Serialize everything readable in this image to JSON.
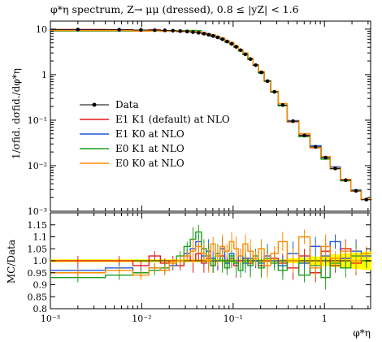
{
  "chart_data": {
    "type": "line",
    "title": "φ*η spectrum, Z→ μμ (dressed), 0.8 ≤ |yZ| < 1.6",
    "xlabel": "φ*η",
    "ylabel": "1/σfid. dσfid./dφ*η",
    "xscale": "log",
    "yscale": "log",
    "xlim": [
      0.001,
      3.2
    ],
    "ylim": [
      0.001,
      15
    ],
    "grid": false,
    "legend_position": "center-left",
    "x_ticks": [
      "10⁻³",
      "10⁻²",
      "10⁻¹",
      "1"
    ],
    "y_ticks": [
      "10⁻³",
      "10⁻²",
      "10⁻¹",
      "1",
      "10"
    ],
    "bin_edges": [
      0.001,
      0.004,
      0.008,
      0.012,
      0.016,
      0.02,
      0.024,
      0.029,
      0.034,
      0.039,
      0.045,
      0.051,
      0.057,
      0.064,
      0.072,
      0.081,
      0.091,
      0.102,
      0.114,
      0.128,
      0.145,
      0.165,
      0.189,
      0.219,
      0.258,
      0.312,
      0.391,
      0.524,
      0.695,
      0.918,
      1.153,
      1.496,
      1.947,
      2.522,
      3.277
    ],
    "data": {
      "name": "Data",
      "color": "#000000",
      "values": [
        9.8,
        9.7,
        9.6,
        9.5,
        9.4,
        9.25,
        9.05,
        8.85,
        8.6,
        8.3,
        7.95,
        7.55,
        7.1,
        6.6,
        6.0,
        5.35,
        4.75,
        4.1,
        3.45,
        2.8,
        2.2,
        1.62,
        1.12,
        0.72,
        0.42,
        0.215,
        0.095,
        0.046,
        0.026,
        0.015,
        0.0087,
        0.0048,
        0.0028,
        0.0018
      ]
    },
    "series": [
      {
        "name": "E1 K1 (default) at NLO",
        "color": "#e41a1c"
      },
      {
        "name": "E1 K0 at NLO",
        "color": "#1f57e0"
      },
      {
        "name": "E0 K1 at NLO",
        "color": "#1e9e1e"
      },
      {
        "name": "E0 K0 at NLO",
        "color": "#ff8c00"
      }
    ],
    "ratio_panel": {
      "ylabel": "MC/Data",
      "ylim": [
        0.8,
        1.2
      ],
      "y_ticks": [
        "0.8",
        "0.85",
        "0.9",
        "0.95",
        "1.0",
        "1.05",
        "1.1",
        "1.15"
      ],
      "band_color": "#ffff00",
      "ratios": [
        [
          1.0,
          1.0,
          0.98,
          1.02,
          0.99,
          1.0,
          0.98,
          1.02,
          1.0,
          1.03,
          0.99,
          1.01,
          0.98,
          1.0,
          1.02,
          0.99,
          1.01,
          0.98,
          1.0,
          1.01,
          0.99,
          1.0,
          0.98,
          1.0,
          1.01,
          0.99,
          0.97,
          1.02,
          0.95,
          1.04,
          0.98,
          1.05,
          0.99,
          1.0
        ],
        [
          0.96,
          0.97,
          0.95,
          0.97,
          0.96,
          0.98,
          1.0,
          1.03,
          1.05,
          1.08,
          1.02,
          1.04,
          1.01,
          1.0,
          1.05,
          0.99,
          1.03,
          1.0,
          1.02,
          0.99,
          1.01,
          1.0,
          0.99,
          1.02,
          1.0,
          0.98,
          1.03,
          0.99,
          1.06,
          1.02,
          1.08,
          1.01,
          1.04,
          1.02
        ],
        [
          0.93,
          0.94,
          0.95,
          0.96,
          0.97,
          0.99,
          1.02,
          1.06,
          1.09,
          1.12,
          1.05,
          1.02,
          0.98,
          1.03,
          1.0,
          0.97,
          1.02,
          0.99,
          0.96,
          1.0,
          0.98,
          1.02,
          0.97,
          1.01,
          0.99,
          0.96,
          1.0,
          0.94,
          0.98,
          0.93,
          0.99,
          0.97,
          1.02,
          1.0
        ],
        [
          0.95,
          0.96,
          0.94,
          0.97,
          0.96,
          0.99,
          1.0,
          1.02,
          1.04,
          1.06,
          1.03,
          1.0,
          1.07,
          1.02,
          1.06,
          1.04,
          1.08,
          1.05,
          1.02,
          1.07,
          1.04,
          1.01,
          1.05,
          0.98,
          1.03,
          1.08,
          1.0,
          1.1,
          0.97,
          1.06,
          1.01,
          1.04,
          1.0,
          1.03
        ]
      ]
    }
  }
}
